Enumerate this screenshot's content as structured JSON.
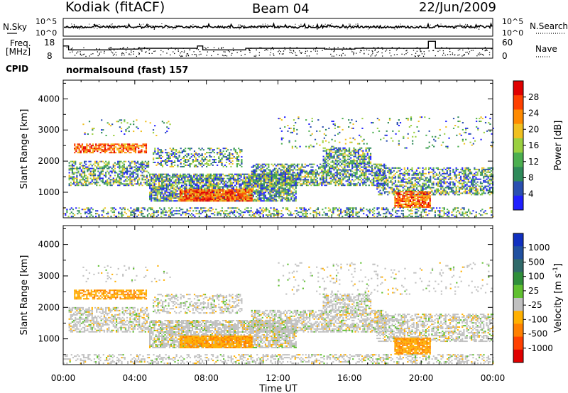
{
  "header": {
    "station": "Kodiak (fitACF)",
    "beam": "Beam 04",
    "date": "22/Jun/2009"
  },
  "left_labels": {
    "nsky": "N.Sky",
    "freq_line1": "Freq.",
    "freq_line2": "[MHz]",
    "cpid": "CPID"
  },
  "right_labels": {
    "nsearch": "N.Search",
    "nave": "Nave"
  },
  "cpid_text": "normalsound (fast) 157",
  "noise_panel": {
    "left_ticks": [
      "10^5",
      "10^0"
    ],
    "right_ticks": [
      "10^5",
      "10^0"
    ]
  },
  "freq_panel": {
    "left_ticks": [
      "18",
      "8"
    ],
    "right_ticks": [
      "60",
      "0"
    ]
  },
  "colors": {
    "power": [
      "#1f1fff",
      "#2a4fb0",
      "#2f8a5a",
      "#4caf50",
      "#9ad040",
      "#f0c020",
      "#ff8a00",
      "#ff4000",
      "#e00000"
    ],
    "velocity": [
      "#1030c0",
      "#2050a0",
      "#306a6a",
      "#2f8f3a",
      "#60c030",
      "#c0c0c0",
      "#ffb000",
      "#ff8000",
      "#ff4000",
      "#e00000"
    ]
  },
  "chart_data": [
    {
      "type": "heatmap",
      "name": "power",
      "ylabel": "Slant Range [km]",
      "ylim": [
        180,
        4600
      ],
      "yticks": [
        "1000",
        "2000",
        "3000",
        "4000"
      ],
      "ytick_values": [
        1000,
        2000,
        3000,
        4000
      ],
      "xlim_hours": [
        0,
        24
      ],
      "colorbar": {
        "label": "Power [dB]",
        "ticks": [
          "4",
          "8",
          "12",
          "16",
          "20",
          "24",
          "28"
        ]
      }
    },
    {
      "type": "heatmap",
      "name": "velocity",
      "ylabel": "Slant Range [km]",
      "ylim": [
        180,
        4600
      ],
      "yticks": [
        "1000",
        "2000",
        "3000",
        "4000"
      ],
      "ytick_values": [
        1000,
        2000,
        3000,
        4000
      ],
      "xlim_hours": [
        0,
        24
      ],
      "xlabel": "Time UT",
      "xticks": [
        "00:00",
        "04:00",
        "08:00",
        "12:00",
        "16:00",
        "20:00",
        "00:00"
      ],
      "colorbar": {
        "label": "Velocity [m s",
        "label_sup": "-1",
        "label_end": "]",
        "ticks": [
          "1000",
          "500",
          "100",
          "25",
          "-25",
          "-100",
          "-500",
          "-1000"
        ]
      }
    }
  ]
}
